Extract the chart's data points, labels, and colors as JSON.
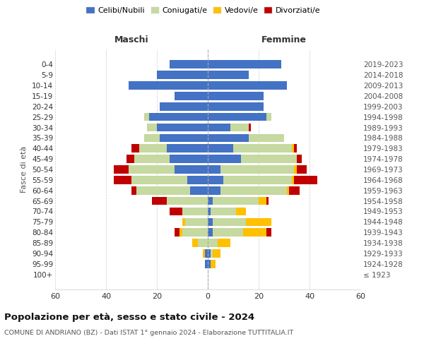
{
  "age_groups": [
    "100+",
    "95-99",
    "90-94",
    "85-89",
    "80-84",
    "75-79",
    "70-74",
    "65-69",
    "60-64",
    "55-59",
    "50-54",
    "45-49",
    "40-44",
    "35-39",
    "30-34",
    "25-29",
    "20-24",
    "15-19",
    "10-14",
    "5-9",
    "0-4"
  ],
  "birth_years": [
    "≤ 1923",
    "1924-1928",
    "1929-1933",
    "1934-1938",
    "1939-1943",
    "1944-1948",
    "1949-1953",
    "1954-1958",
    "1959-1963",
    "1964-1968",
    "1969-1973",
    "1974-1978",
    "1979-1983",
    "1984-1988",
    "1989-1993",
    "1994-1998",
    "1999-2003",
    "2004-2008",
    "2009-2013",
    "2014-2018",
    "2019-2023"
  ],
  "maschi": {
    "celibi": [
      0,
      1,
      1,
      0,
      0,
      0,
      0,
      0,
      7,
      8,
      13,
      15,
      16,
      19,
      20,
      23,
      19,
      13,
      31,
      20,
      15
    ],
    "coniugati": [
      0,
      0,
      0,
      4,
      10,
      9,
      10,
      16,
      21,
      22,
      18,
      14,
      11,
      6,
      4,
      2,
      0,
      0,
      0,
      0,
      0
    ],
    "vedovi": [
      0,
      0,
      1,
      2,
      1,
      1,
      0,
      0,
      0,
      0,
      0,
      0,
      0,
      0,
      0,
      0,
      0,
      0,
      0,
      0,
      0
    ],
    "divorziati": [
      0,
      0,
      0,
      0,
      2,
      0,
      5,
      6,
      2,
      7,
      6,
      3,
      3,
      0,
      0,
      0,
      0,
      0,
      0,
      0,
      0
    ]
  },
  "femmine": {
    "nubili": [
      0,
      1,
      1,
      0,
      2,
      2,
      1,
      2,
      5,
      6,
      5,
      13,
      10,
      16,
      9,
      23,
      22,
      22,
      31,
      16,
      29
    ],
    "coniugate": [
      0,
      0,
      1,
      4,
      12,
      13,
      10,
      18,
      26,
      27,
      29,
      22,
      23,
      14,
      7,
      2,
      0,
      0,
      0,
      0,
      0
    ],
    "vedove": [
      0,
      2,
      3,
      5,
      9,
      10,
      4,
      3,
      1,
      1,
      1,
      0,
      1,
      0,
      0,
      0,
      0,
      0,
      0,
      0,
      0
    ],
    "divorziate": [
      0,
      0,
      0,
      0,
      2,
      0,
      0,
      1,
      4,
      9,
      4,
      2,
      1,
      0,
      1,
      0,
      0,
      0,
      0,
      0,
      0
    ]
  },
  "colors": {
    "celibi": "#4472c4",
    "coniugati": "#c5d9a0",
    "vedovi": "#ffc000",
    "divorziati": "#c00000"
  },
  "xlim": 60,
  "title": "Popolazione per età, sesso e stato civile - 2024",
  "subtitle": "COMUNE DI ANDRIANO (BZ) - Dati ISTAT 1° gennaio 2024 - Elaborazione TUTTITALIA.IT",
  "ylabel_left": "Fasce di età",
  "xlabel_left": "Maschi",
  "xlabel_right": "Femmine",
  "legend_labels": [
    "Celibi/Nubili",
    "Coniugati/e",
    "Vedovi/e",
    "Divorziati/e"
  ]
}
